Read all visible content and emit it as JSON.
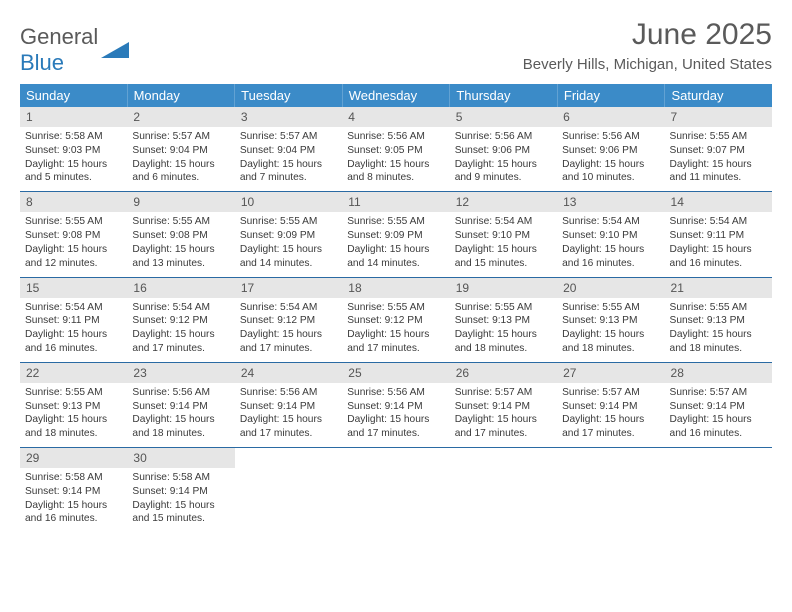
{
  "logo": {
    "text1": "General",
    "text2": "Blue"
  },
  "title": "June 2025",
  "location": "Beverly Hills, Michigan, United States",
  "colors": {
    "header_bg": "#3b8bc8",
    "header_text": "#ffffff",
    "daynum_bg": "#e6e6e6",
    "row_border": "#2a6aa3",
    "text": "#3a3a3a",
    "title": "#5a5a5a",
    "logo_blue": "#2a7ab9"
  },
  "typography": {
    "title_fontsize": 30,
    "location_fontsize": 15,
    "weekday_fontsize": 13,
    "daynum_fontsize": 12,
    "body_fontsize": 10.2
  },
  "weekdays": [
    "Sunday",
    "Monday",
    "Tuesday",
    "Wednesday",
    "Thursday",
    "Friday",
    "Saturday"
  ],
  "weeks": [
    [
      {
        "num": "1",
        "sunrise": "Sunrise: 5:58 AM",
        "sunset": "Sunset: 9:03 PM",
        "day1": "Daylight: 15 hours",
        "day2": "and 5 minutes."
      },
      {
        "num": "2",
        "sunrise": "Sunrise: 5:57 AM",
        "sunset": "Sunset: 9:04 PM",
        "day1": "Daylight: 15 hours",
        "day2": "and 6 minutes."
      },
      {
        "num": "3",
        "sunrise": "Sunrise: 5:57 AM",
        "sunset": "Sunset: 9:04 PM",
        "day1": "Daylight: 15 hours",
        "day2": "and 7 minutes."
      },
      {
        "num": "4",
        "sunrise": "Sunrise: 5:56 AM",
        "sunset": "Sunset: 9:05 PM",
        "day1": "Daylight: 15 hours",
        "day2": "and 8 minutes."
      },
      {
        "num": "5",
        "sunrise": "Sunrise: 5:56 AM",
        "sunset": "Sunset: 9:06 PM",
        "day1": "Daylight: 15 hours",
        "day2": "and 9 minutes."
      },
      {
        "num": "6",
        "sunrise": "Sunrise: 5:56 AM",
        "sunset": "Sunset: 9:06 PM",
        "day1": "Daylight: 15 hours",
        "day2": "and 10 minutes."
      },
      {
        "num": "7",
        "sunrise": "Sunrise: 5:55 AM",
        "sunset": "Sunset: 9:07 PM",
        "day1": "Daylight: 15 hours",
        "day2": "and 11 minutes."
      }
    ],
    [
      {
        "num": "8",
        "sunrise": "Sunrise: 5:55 AM",
        "sunset": "Sunset: 9:08 PM",
        "day1": "Daylight: 15 hours",
        "day2": "and 12 minutes."
      },
      {
        "num": "9",
        "sunrise": "Sunrise: 5:55 AM",
        "sunset": "Sunset: 9:08 PM",
        "day1": "Daylight: 15 hours",
        "day2": "and 13 minutes."
      },
      {
        "num": "10",
        "sunrise": "Sunrise: 5:55 AM",
        "sunset": "Sunset: 9:09 PM",
        "day1": "Daylight: 15 hours",
        "day2": "and 14 minutes."
      },
      {
        "num": "11",
        "sunrise": "Sunrise: 5:55 AM",
        "sunset": "Sunset: 9:09 PM",
        "day1": "Daylight: 15 hours",
        "day2": "and 14 minutes."
      },
      {
        "num": "12",
        "sunrise": "Sunrise: 5:54 AM",
        "sunset": "Sunset: 9:10 PM",
        "day1": "Daylight: 15 hours",
        "day2": "and 15 minutes."
      },
      {
        "num": "13",
        "sunrise": "Sunrise: 5:54 AM",
        "sunset": "Sunset: 9:10 PM",
        "day1": "Daylight: 15 hours",
        "day2": "and 16 minutes."
      },
      {
        "num": "14",
        "sunrise": "Sunrise: 5:54 AM",
        "sunset": "Sunset: 9:11 PM",
        "day1": "Daylight: 15 hours",
        "day2": "and 16 minutes."
      }
    ],
    [
      {
        "num": "15",
        "sunrise": "Sunrise: 5:54 AM",
        "sunset": "Sunset: 9:11 PM",
        "day1": "Daylight: 15 hours",
        "day2": "and 16 minutes."
      },
      {
        "num": "16",
        "sunrise": "Sunrise: 5:54 AM",
        "sunset": "Sunset: 9:12 PM",
        "day1": "Daylight: 15 hours",
        "day2": "and 17 minutes."
      },
      {
        "num": "17",
        "sunrise": "Sunrise: 5:54 AM",
        "sunset": "Sunset: 9:12 PM",
        "day1": "Daylight: 15 hours",
        "day2": "and 17 minutes."
      },
      {
        "num": "18",
        "sunrise": "Sunrise: 5:55 AM",
        "sunset": "Sunset: 9:12 PM",
        "day1": "Daylight: 15 hours",
        "day2": "and 17 minutes."
      },
      {
        "num": "19",
        "sunrise": "Sunrise: 5:55 AM",
        "sunset": "Sunset: 9:13 PM",
        "day1": "Daylight: 15 hours",
        "day2": "and 18 minutes."
      },
      {
        "num": "20",
        "sunrise": "Sunrise: 5:55 AM",
        "sunset": "Sunset: 9:13 PM",
        "day1": "Daylight: 15 hours",
        "day2": "and 18 minutes."
      },
      {
        "num": "21",
        "sunrise": "Sunrise: 5:55 AM",
        "sunset": "Sunset: 9:13 PM",
        "day1": "Daylight: 15 hours",
        "day2": "and 18 minutes."
      }
    ],
    [
      {
        "num": "22",
        "sunrise": "Sunrise: 5:55 AM",
        "sunset": "Sunset: 9:13 PM",
        "day1": "Daylight: 15 hours",
        "day2": "and 18 minutes."
      },
      {
        "num": "23",
        "sunrise": "Sunrise: 5:56 AM",
        "sunset": "Sunset: 9:14 PM",
        "day1": "Daylight: 15 hours",
        "day2": "and 18 minutes."
      },
      {
        "num": "24",
        "sunrise": "Sunrise: 5:56 AM",
        "sunset": "Sunset: 9:14 PM",
        "day1": "Daylight: 15 hours",
        "day2": "and 17 minutes."
      },
      {
        "num": "25",
        "sunrise": "Sunrise: 5:56 AM",
        "sunset": "Sunset: 9:14 PM",
        "day1": "Daylight: 15 hours",
        "day2": "and 17 minutes."
      },
      {
        "num": "26",
        "sunrise": "Sunrise: 5:57 AM",
        "sunset": "Sunset: 9:14 PM",
        "day1": "Daylight: 15 hours",
        "day2": "and 17 minutes."
      },
      {
        "num": "27",
        "sunrise": "Sunrise: 5:57 AM",
        "sunset": "Sunset: 9:14 PM",
        "day1": "Daylight: 15 hours",
        "day2": "and 17 minutes."
      },
      {
        "num": "28",
        "sunrise": "Sunrise: 5:57 AM",
        "sunset": "Sunset: 9:14 PM",
        "day1": "Daylight: 15 hours",
        "day2": "and 16 minutes."
      }
    ],
    [
      {
        "num": "29",
        "sunrise": "Sunrise: 5:58 AM",
        "sunset": "Sunset: 9:14 PM",
        "day1": "Daylight: 15 hours",
        "day2": "and 16 minutes."
      },
      {
        "num": "30",
        "sunrise": "Sunrise: 5:58 AM",
        "sunset": "Sunset: 9:14 PM",
        "day1": "Daylight: 15 hours",
        "day2": "and 15 minutes."
      },
      null,
      null,
      null,
      null,
      null
    ]
  ]
}
